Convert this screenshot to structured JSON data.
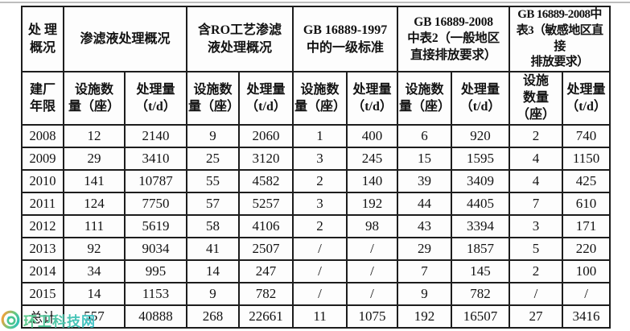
{
  "page": {
    "background": "#ffffff",
    "top_rule_color": "#bdbdbd"
  },
  "table": {
    "border_color": "#1d1d1d",
    "corner_header": "处 理\n概况",
    "row_axis_header": "建厂\n年限",
    "group_headers": [
      "渗滤液处理概况",
      "含RO工艺渗滤\n液处理概况",
      "GB 16889-1997\n中的一级标准",
      "GB 16889-2008\n中表2（一般地区\n直接排放要求）",
      "GB 16889-2008中\n表3（敏感地区直接\n排放要求）"
    ],
    "subheader_facilities": "设施数\n量（座）",
    "subheader_facilities_narrow": "设施\n数量\n（座）",
    "subheader_capacity": "处理量\n（t/d）",
    "rows": [
      {
        "year": "2008",
        "values": [
          "12",
          "2140",
          "9",
          "2060",
          "1",
          "400",
          "6",
          "920",
          "2",
          "740"
        ]
      },
      {
        "year": "2009",
        "values": [
          "29",
          "3410",
          "25",
          "3120",
          "3",
          "245",
          "15",
          "1595",
          "4",
          "1150"
        ]
      },
      {
        "year": "2010",
        "values": [
          "141",
          "10787",
          "55",
          "4582",
          "2",
          "140",
          "39",
          "3409",
          "4",
          "425"
        ]
      },
      {
        "year": "2011",
        "values": [
          "124",
          "7750",
          "57",
          "5257",
          "3",
          "192",
          "44",
          "4405",
          "7",
          "610"
        ]
      },
      {
        "year": "2012",
        "values": [
          "111",
          "5619",
          "58",
          "4106",
          "2",
          "98",
          "43",
          "3394",
          "3",
          "171"
        ]
      },
      {
        "year": "2013",
        "values": [
          "92",
          "9034",
          "41",
          "2507",
          "/",
          "/",
          "29",
          "1857",
          "5",
          "220"
        ]
      },
      {
        "year": "2014",
        "values": [
          "34",
          "995",
          "14",
          "247",
          "/",
          "/",
          "7",
          "145",
          "2",
          "100"
        ]
      },
      {
        "year": "2015",
        "values": [
          "14",
          "1153",
          "9",
          "782",
          "/",
          "/",
          "9",
          "782",
          "/",
          "/"
        ]
      },
      {
        "year": "总计",
        "values": [
          "557",
          "40888",
          "268",
          "22661",
          "11",
          "1075",
          "192",
          "16507",
          "27",
          "3416"
        ]
      }
    ]
  },
  "watermark": {
    "text": "环卫科技网",
    "text_color_start": "#5bc989",
    "text_color_end": "#3ec2c9",
    "logo_ring_start": "#f0a33c",
    "logo_ring_end": "#2fc1b4",
    "logo_inner_color": "#4cc48f"
  }
}
